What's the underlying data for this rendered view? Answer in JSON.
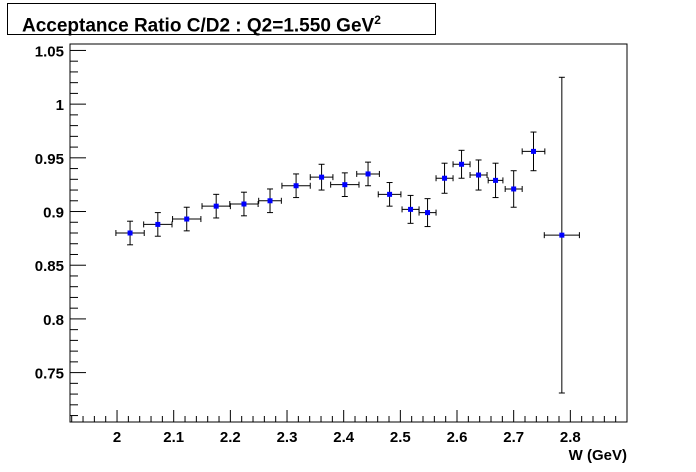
{
  "chart_data": {
    "type": "scatter",
    "title": "Acceptance Ratio C/D2 : Q2=1.550 GeV",
    "title_superscript": "2",
    "xlabel": "W (GeV)",
    "ylabel": "",
    "xlim": [
      1.917,
      2.9
    ],
    "ylim": [
      0.704,
      1.056
    ],
    "x_ticks": [
      "2",
      "2.1",
      "2.2",
      "2.3",
      "2.4",
      "2.5",
      "2.6",
      "2.7",
      "2.8"
    ],
    "x_tick_values": [
      2,
      2.1,
      2.2,
      2.3,
      2.4,
      2.5,
      2.6,
      2.7,
      2.8
    ],
    "y_ticks": [
      "0.75",
      "0.8",
      "0.85",
      "0.9",
      "0.95",
      "1",
      "1.05"
    ],
    "y_tick_values": [
      0.75,
      0.8,
      0.85,
      0.9,
      0.95,
      1.0,
      1.05
    ],
    "marker_color": "#0000ff",
    "points": [
      {
        "x": 2.023,
        "y": 0.88,
        "xerr": 0.025,
        "yerr": 0.011
      },
      {
        "x": 2.072,
        "y": 0.888,
        "xerr": 0.025,
        "yerr": 0.011
      },
      {
        "x": 2.123,
        "y": 0.893,
        "xerr": 0.025,
        "yerr": 0.011
      },
      {
        "x": 2.175,
        "y": 0.905,
        "xerr": 0.025,
        "yerr": 0.011
      },
      {
        "x": 2.224,
        "y": 0.907,
        "xerr": 0.025,
        "yerr": 0.011
      },
      {
        "x": 2.27,
        "y": 0.91,
        "xerr": 0.02,
        "yerr": 0.011
      },
      {
        "x": 2.316,
        "y": 0.924,
        "xerr": 0.025,
        "yerr": 0.011
      },
      {
        "x": 2.361,
        "y": 0.932,
        "xerr": 0.02,
        "yerr": 0.012
      },
      {
        "x": 2.402,
        "y": 0.925,
        "xerr": 0.025,
        "yerr": 0.011
      },
      {
        "x": 2.443,
        "y": 0.935,
        "xerr": 0.02,
        "yerr": 0.011
      },
      {
        "x": 2.481,
        "y": 0.916,
        "xerr": 0.02,
        "yerr": 0.011
      },
      {
        "x": 2.518,
        "y": 0.902,
        "xerr": 0.015,
        "yerr": 0.013
      },
      {
        "x": 2.548,
        "y": 0.899,
        "xerr": 0.015,
        "yerr": 0.013
      },
      {
        "x": 2.578,
        "y": 0.931,
        "xerr": 0.015,
        "yerr": 0.014
      },
      {
        "x": 2.608,
        "y": 0.944,
        "xerr": 0.015,
        "yerr": 0.013
      },
      {
        "x": 2.638,
        "y": 0.934,
        "xerr": 0.015,
        "yerr": 0.014
      },
      {
        "x": 2.668,
        "y": 0.929,
        "xerr": 0.013,
        "yerr": 0.016
      },
      {
        "x": 2.7,
        "y": 0.921,
        "xerr": 0.015,
        "yerr": 0.017
      },
      {
        "x": 2.735,
        "y": 0.956,
        "xerr": 0.02,
        "yerr": 0.018
      },
      {
        "x": 2.785,
        "y": 0.878,
        "xerr": 0.031,
        "yerr": 0.147
      }
    ]
  }
}
